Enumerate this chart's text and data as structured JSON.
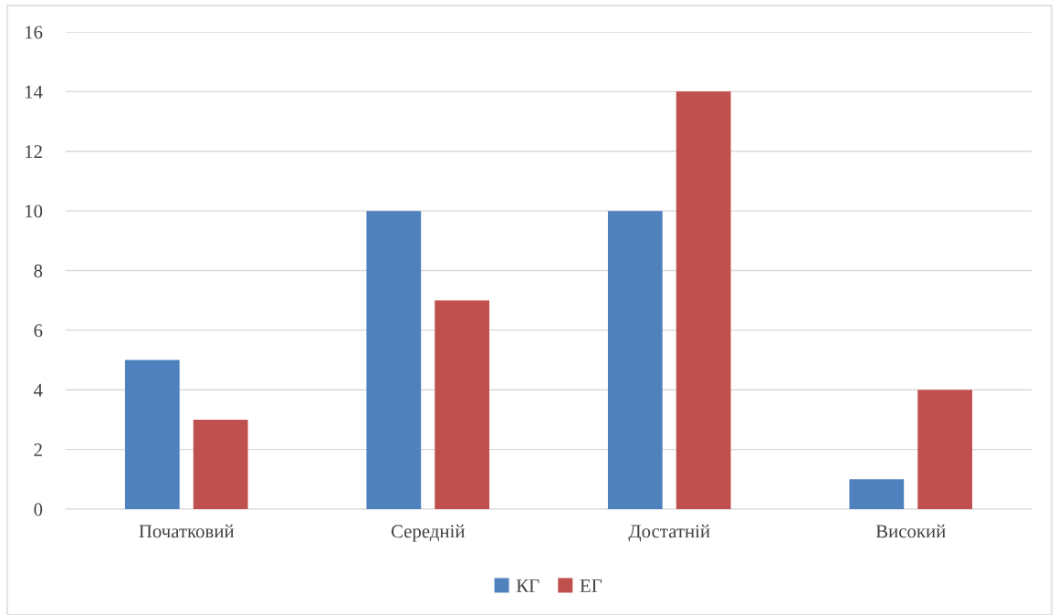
{
  "chart_data": {
    "type": "bar",
    "categories": [
      "Початковий",
      "Середній",
      "Достатній",
      "Високий"
    ],
    "series": [
      {
        "name": "КГ",
        "color": "#4f81bd",
        "values": [
          5,
          10,
          10,
          1
        ]
      },
      {
        "name": "ЕГ",
        "color": "#c0504d",
        "values": [
          3,
          7,
          14,
          4
        ]
      }
    ],
    "ylim": [
      0,
      16
    ],
    "yticks": [
      0,
      2,
      4,
      6,
      8,
      10,
      12,
      14,
      16
    ],
    "grid": "y",
    "legend": "bottom"
  }
}
